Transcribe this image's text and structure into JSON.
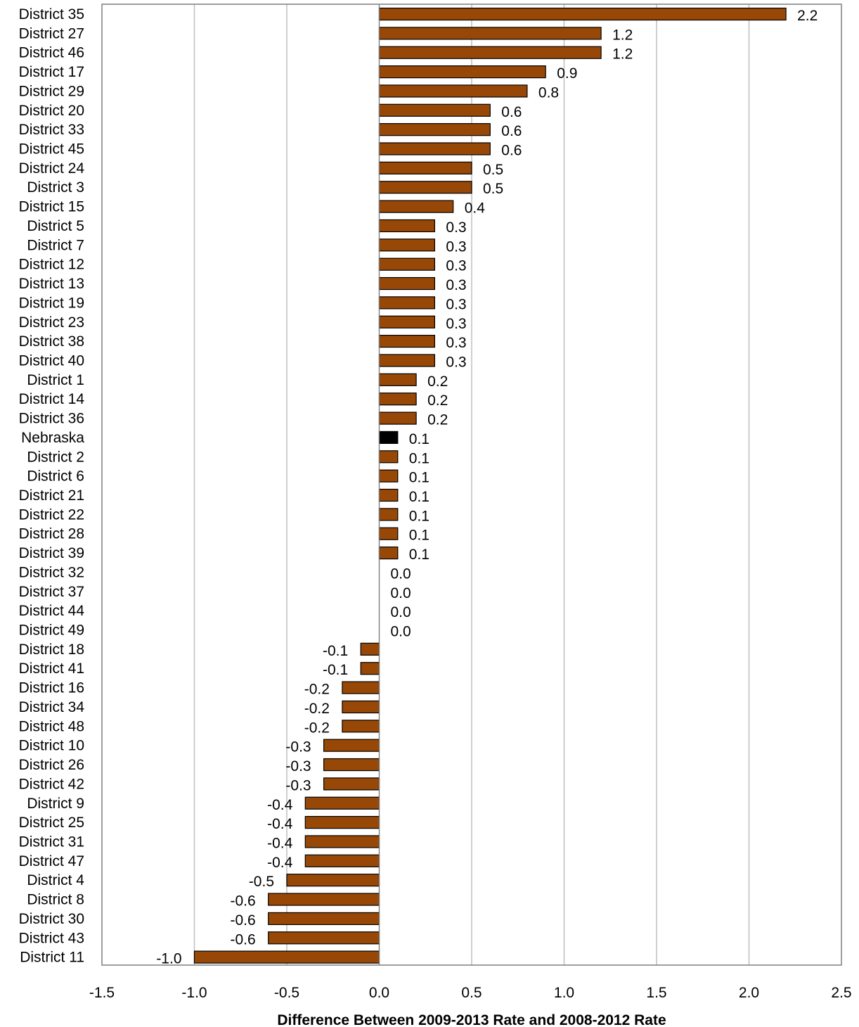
{
  "chart_data": {
    "type": "bar",
    "orientation": "horizontal",
    "title": "",
    "xlabel": "Difference Between 2009-2013 Rate and 2008-2012 Rate",
    "ylabel": "",
    "xlim": [
      -1.5,
      2.5
    ],
    "xticks": [
      -1.5,
      -1.0,
      -0.5,
      0.0,
      0.5,
      1.0,
      1.5,
      2.0,
      2.5
    ],
    "xtick_labels": [
      "-1.5",
      "-1.0",
      "-0.5",
      "0.0",
      "0.5",
      "1.0",
      "1.5",
      "2.0",
      "2.5"
    ],
    "grid": "vertical",
    "legend": "none",
    "colors": {
      "bar": "#984806",
      "highlight": "#000000",
      "grid": "#bfbfbf",
      "frame": "#7f7f7f"
    },
    "highlight_category": "Nebraska",
    "categories": [
      "District 35",
      "District 27",
      "District 46",
      "District 17",
      "District 29",
      "District 20",
      "District 33",
      "District 45",
      "District 24",
      "District 3",
      "District 15",
      "District 5",
      "District 7",
      "District 12",
      "District 13",
      "District 19",
      "District 23",
      "District 38",
      "District 40",
      "District 1",
      "District 14",
      "District 36",
      "Nebraska",
      "District 2",
      "District 6",
      "District 21",
      "District 22",
      "District 28",
      "District 39",
      "District 32",
      "District 37",
      "District 44",
      "District 49",
      "District 18",
      "District 41",
      "District 16",
      "District 34",
      "District 48",
      "District 10",
      "District 26",
      "District 42",
      "District 9",
      "District 25",
      "District 31",
      "District 47",
      "District 4",
      "District 8",
      "District 30",
      "District 43",
      "District 11"
    ],
    "values": [
      2.2,
      1.2,
      1.2,
      0.9,
      0.8,
      0.6,
      0.6,
      0.6,
      0.5,
      0.5,
      0.4,
      0.3,
      0.3,
      0.3,
      0.3,
      0.3,
      0.3,
      0.3,
      0.3,
      0.2,
      0.2,
      0.2,
      0.1,
      0.1,
      0.1,
      0.1,
      0.1,
      0.1,
      0.1,
      0.0,
      0.0,
      0.0,
      0.0,
      -0.1,
      -0.1,
      -0.2,
      -0.2,
      -0.2,
      -0.3,
      -0.3,
      -0.3,
      -0.4,
      -0.4,
      -0.4,
      -0.4,
      -0.5,
      -0.6,
      -0.6,
      -0.6,
      -1.0
    ],
    "value_labels": [
      "2.2",
      "1.2",
      "1.2",
      "0.9",
      "0.8",
      "0.6",
      "0.6",
      "0.6",
      "0.5",
      "0.5",
      "0.4",
      "0.3",
      "0.3",
      "0.3",
      "0.3",
      "0.3",
      "0.3",
      "0.3",
      "0.3",
      "0.2",
      "0.2",
      "0.2",
      "0.1",
      "0.1",
      "0.1",
      "0.1",
      "0.1",
      "0.1",
      "0.1",
      "0.0",
      "0.0",
      "0.0",
      "0.0",
      "-0.1",
      "-0.1",
      "-0.2",
      "-0.2",
      "-0.2",
      "-0.3",
      "-0.3",
      "-0.3",
      "-0.4",
      "-0.4",
      "-0.4",
      "-0.4",
      "-0.5",
      "-0.6",
      "-0.6",
      "-0.6",
      "-1.0"
    ]
  }
}
